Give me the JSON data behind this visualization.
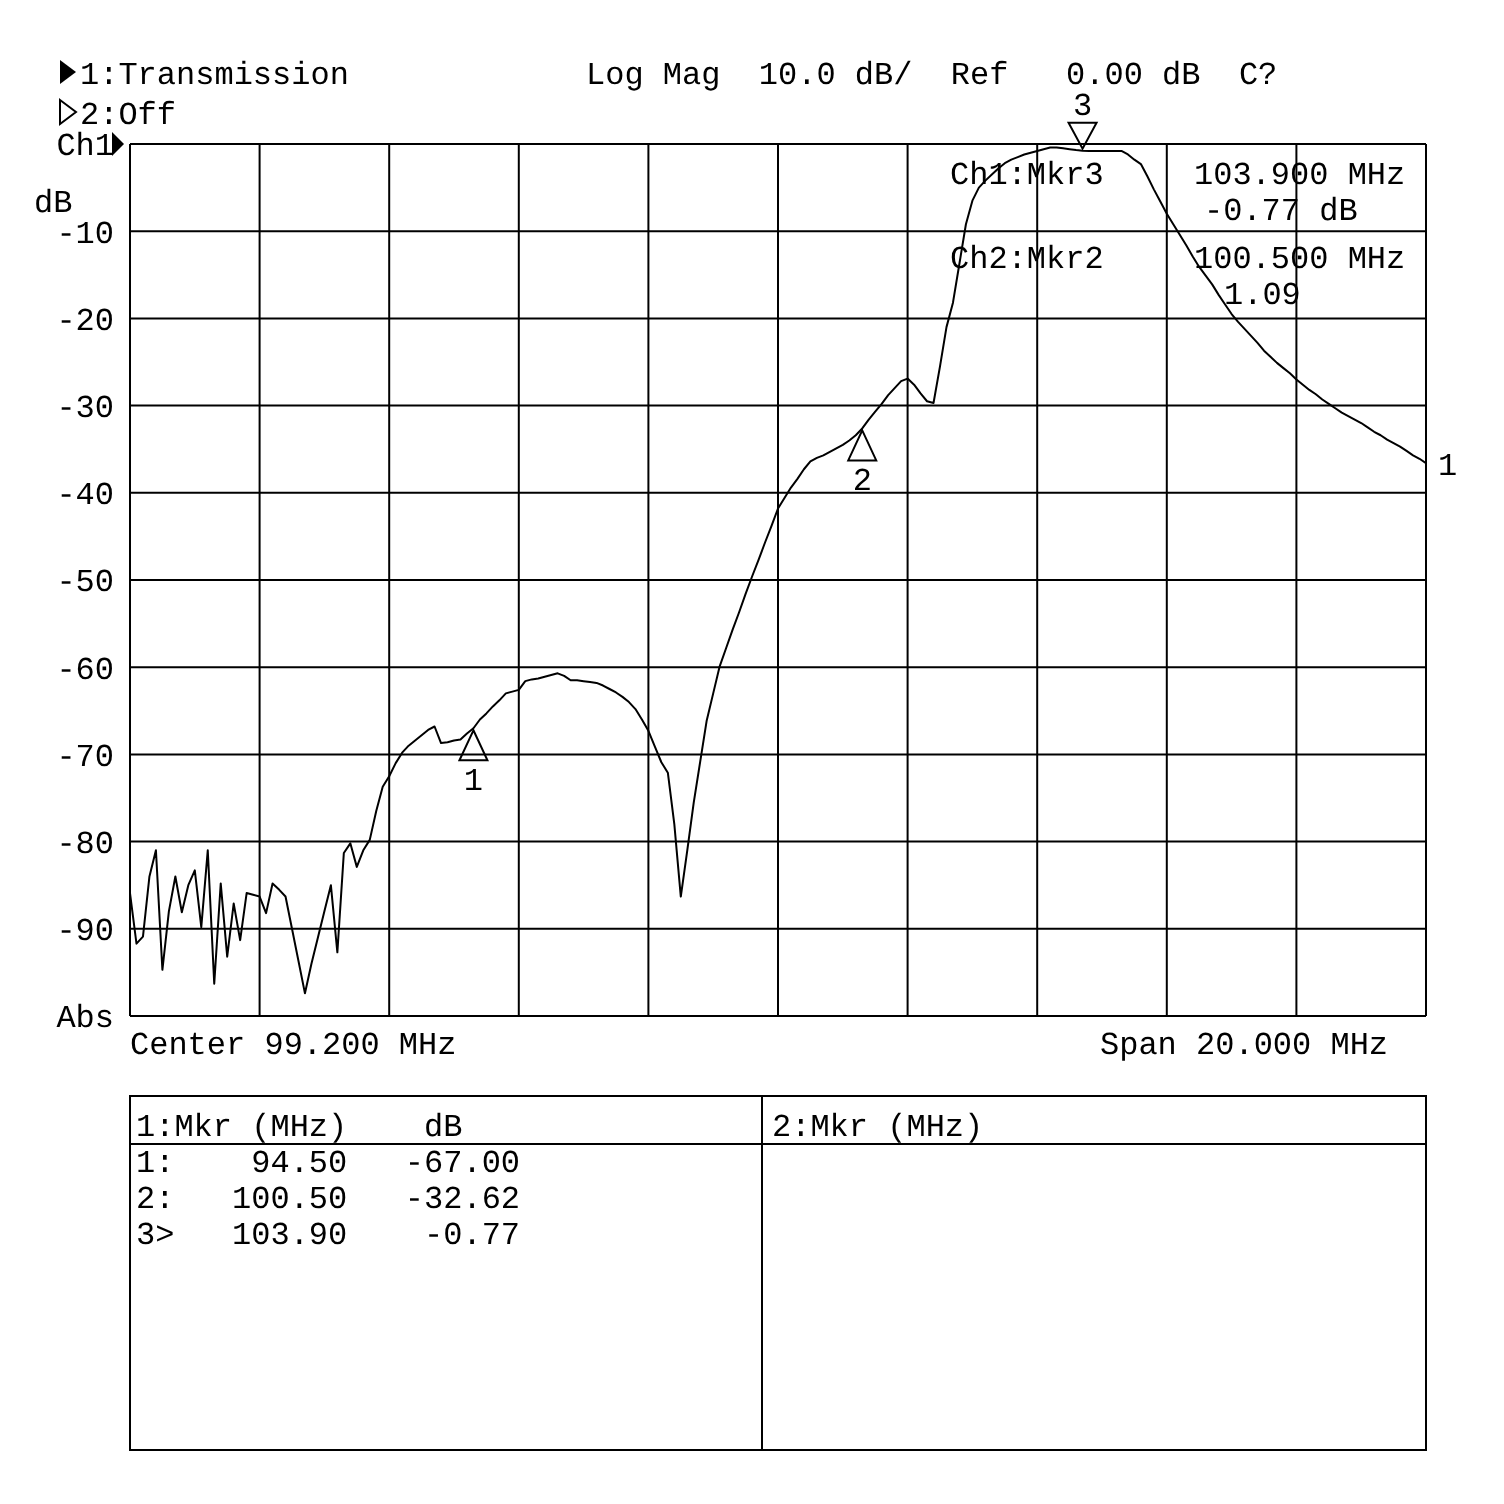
{
  "chart_data": {
    "type": "line",
    "ylabel": "dB",
    "ylim": [
      -100,
      0
    ],
    "categories": [
      null,
      null,
      null,
      null,
      null,
      null,
      null,
      null,
      null,
      null,
      null,
      null,
      null,
      null,
      null,
      null,
      null,
      null,
      null,
      null,
      null,
      null,
      null,
      null,
      null,
      null,
      null,
      null,
      null,
      null,
      null,
      null,
      null,
      null,
      null,
      null,
      null,
      null,
      null,
      null,
      null,
      null,
      null,
      null,
      null,
      null,
      null,
      null,
      null,
      null,
      null,
      null,
      null,
      null,
      null,
      null,
      null,
      null,
      null,
      null,
      null,
      null,
      null,
      null,
      null,
      null,
      null,
      null,
      null,
      null,
      null,
      null,
      null,
      null,
      null,
      null,
      null,
      null,
      null,
      null,
      null,
      null,
      null,
      null,
      null,
      null,
      null,
      null,
      null,
      null,
      null,
      null,
      null,
      null,
      null,
      null,
      null,
      null,
      null,
      null,
      null,
      null,
      null,
      null,
      null,
      null,
      null,
      null,
      null,
      null,
      null,
      null,
      null,
      null,
      null,
      null,
      null,
      null,
      null,
      null,
      null,
      null,
      null,
      null,
      null,
      null,
      null,
      null,
      null,
      null,
      null,
      null,
      null,
      null,
      null,
      null,
      null,
      null,
      null,
      null,
      null,
      null,
      null,
      null,
      null,
      null,
      null,
      null,
      null,
      null,
      null,
      null,
      null,
      null,
      null,
      null,
      null,
      null,
      null,
      null,
      null,
      null,
      null,
      null,
      null,
      null,
      null,
      null,
      null,
      null,
      null,
      null,
      null,
      null,
      null,
      null,
      null,
      null,
      null,
      null,
      null,
      null,
      null,
      null,
      null,
      null,
      null,
      null,
      null,
      null,
      null,
      null,
      null,
      null,
      null,
      null,
      null,
      null,
      null,
      null,
      null
    ],
    "yticks": [
      {
        "value": 0,
        "label": "Ch1"
      },
      -10,
      -20,
      -30,
      -40,
      -50,
      -60,
      -70,
      -80,
      -90,
      {
        "value": -100,
        "label": "Abs"
      }
    ],
    "grid": true,
    "legend": false,
    "marker": "none",
    "line_style": "solid",
    "series": [
      {
        "color": "#000000",
        "values": [
          -85.9,
          -91.7,
          -90.9,
          -84,
          -81.0,
          -94.7,
          -88,
          -84.0,
          -88.1,
          -85,
          -83.3,
          -89.8,
          -81.0,
          -96.3,
          -84.8,
          -93.2,
          -87.1,
          -91.3,
          -85.9,
          -86.1,
          -86.3,
          -88.2,
          -84.8,
          -85.5,
          -86.3,
          -90,
          -93.7,
          -97.4,
          -94,
          -91,
          -88,
          -85.0,
          -92.7,
          -81.3,
          -80.2,
          -82.9,
          -81,
          -79.8,
          -76.5,
          -73.7,
          -72.5,
          -71.0,
          -69.8,
          -69.0,
          -68.4,
          -67.8,
          -67.2,
          -66.8,
          -68.7,
          -68.6,
          -68.4,
          -68.3,
          -67.6,
          -67.0,
          -66.0,
          -65.3,
          -64.5,
          -63.8,
          -63.0,
          -62.8,
          -62.6,
          -61.6,
          -61.4,
          -61.3,
          -61.1,
          -60.9,
          -60.7,
          -61.0,
          -61.5,
          -61.5,
          -61.6,
          -61.7,
          -61.8,
          -62.1,
          -62.5,
          -62.9,
          -63.4,
          -64.0,
          -64.8,
          -66.0,
          -67.3,
          -69.1,
          -70.9,
          -72.1,
          -78,
          -86.3,
          -81,
          -75.5,
          -70.8,
          -66.1,
          -63.0,
          -59.9,
          -57.8,
          -55.7,
          -53.7,
          -51.6,
          -49.6,
          -47.7,
          -45.7,
          -43.8,
          -41.8,
          -40.6,
          -39.4,
          -38.4,
          -37.3,
          -36.4,
          -36.0,
          -35.7,
          -35.3,
          -34.9,
          -34.5,
          -34.0,
          -33.4,
          -32.62,
          -31.6,
          -30.7,
          -29.8,
          -28.8,
          -28.0,
          -27.2,
          -26.9,
          -27.6,
          -28.6,
          -29.5,
          -29.7,
          -25.5,
          -21.0,
          -18.2,
          -13.7,
          -9.2,
          -6.5,
          -5.0,
          -4.2,
          -3.5,
          -2.8,
          -2.2,
          -1.8,
          -1.5,
          -1.2,
          -1.0,
          -0.8,
          -0.6,
          -0.4,
          -0.4,
          -0.5,
          -0.6,
          -0.7,
          -0.77,
          -0.8,
          -0.8,
          -0.8,
          -0.8,
          -0.8,
          -0.8,
          -1.2,
          -1.8,
          -2.3,
          -3.7,
          -5.2,
          -6.6,
          -8.0,
          -9.2,
          -10.4,
          -11.6,
          -12.9,
          -14.1,
          -15.1,
          -16.1,
          -17.3,
          -18.4,
          -19.5,
          -20.4,
          -21.2,
          -22.0,
          -22.8,
          -23.7,
          -24.4,
          -25.1,
          -25.7,
          -26.3,
          -27.0,
          -27.6,
          -28.2,
          -28.7,
          -29.3,
          -29.8,
          -30.3,
          -30.8,
          -31.2,
          -31.6,
          -32.0,
          -32.5,
          -33.0,
          -33.4,
          -33.9,
          -34.3,
          -34.7,
          -35.2,
          -35.7,
          -36.1,
          -36.6
        ]
      }
    ],
    "annotations": [
      "1:Transmission",
      "2:Off",
      "Log Mag  10.0 dB/  Ref   0.00 dB  C?",
      "Ch1:Mkr3",
      "103.900 MHz",
      "-0.77 dB",
      "Ch2:Mkr2",
      "100.500 MHz",
      "1.09",
      "Center 99.200 MHz",
      "Span 20.000 MHz",
      "1:Mkr (MHz)    dB",
      "2:Mkr (MHz)",
      "1:    94.50   -67.00",
      "2:   100.50   -32.62",
      "3>   103.90    -0.77",
      "1",
      {
        "text": "1",
        "y": -67.0
      },
      {
        "text": "2",
        "y": -32.62
      },
      {
        "text": "3",
        "y": -0.77
      }
    ]
  }
}
